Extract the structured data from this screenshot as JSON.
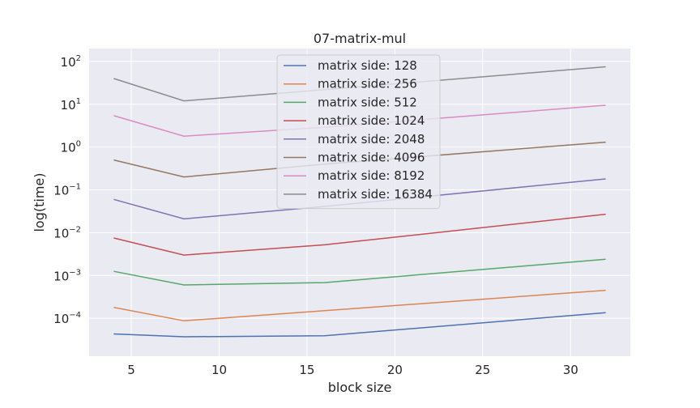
{
  "chart_data": {
    "type": "line",
    "title": "07-matrix-mul",
    "xlabel": "block size",
    "ylabel": "log(time)",
    "x": [
      4,
      8,
      16,
      32
    ],
    "xlim": [
      2.6,
      33.4
    ],
    "xticks": [
      5,
      10,
      15,
      20,
      25,
      30
    ],
    "yscale": "log",
    "ylim": [
      1.3e-05,
      200
    ],
    "yticks": [
      {
        "value": 0.0001,
        "base": "10",
        "exp": "−4"
      },
      {
        "value": 0.001,
        "base": "10",
        "exp": "−3"
      },
      {
        "value": 0.01,
        "base": "10",
        "exp": "−2"
      },
      {
        "value": 0.1,
        "base": "10",
        "exp": "−1"
      },
      {
        "value": 1,
        "base": "10",
        "exp": "0"
      },
      {
        "value": 10,
        "base": "10",
        "exp": "1"
      },
      {
        "value": 100,
        "base": "10",
        "exp": "2"
      }
    ],
    "grid": true,
    "legend_position": "top-center",
    "background": "#eaeaf2",
    "series": [
      {
        "name": "matrix side: 128",
        "color": "#4c72b0",
        "values": [
          4.3e-05,
          3.7e-05,
          3.9e-05,
          0.000135
        ]
      },
      {
        "name": "matrix side: 256",
        "color": "#dd8452",
        "values": [
          0.00018,
          8.7e-05,
          0.00015,
          0.00045
        ]
      },
      {
        "name": "matrix side: 512",
        "color": "#55a868",
        "values": [
          0.00125,
          0.0006,
          0.00068,
          0.0024
        ]
      },
      {
        "name": "matrix side: 1024",
        "color": "#c44e52",
        "values": [
          0.0075,
          0.003,
          0.0052,
          0.027
        ]
      },
      {
        "name": "matrix side: 2048",
        "color": "#8172b3",
        "values": [
          0.06,
          0.021,
          0.041,
          0.18
        ]
      },
      {
        "name": "matrix side: 4096",
        "color": "#937860",
        "values": [
          0.5,
          0.2,
          0.4,
          1.3
        ]
      },
      {
        "name": "matrix side: 8192",
        "color": "#da8bc3",
        "values": [
          5.4,
          1.8,
          2.9,
          9.5
        ]
      },
      {
        "name": "matrix side: 16384",
        "color": "#8c8c8c",
        "values": [
          40,
          12,
          22,
          75
        ]
      }
    ]
  }
}
